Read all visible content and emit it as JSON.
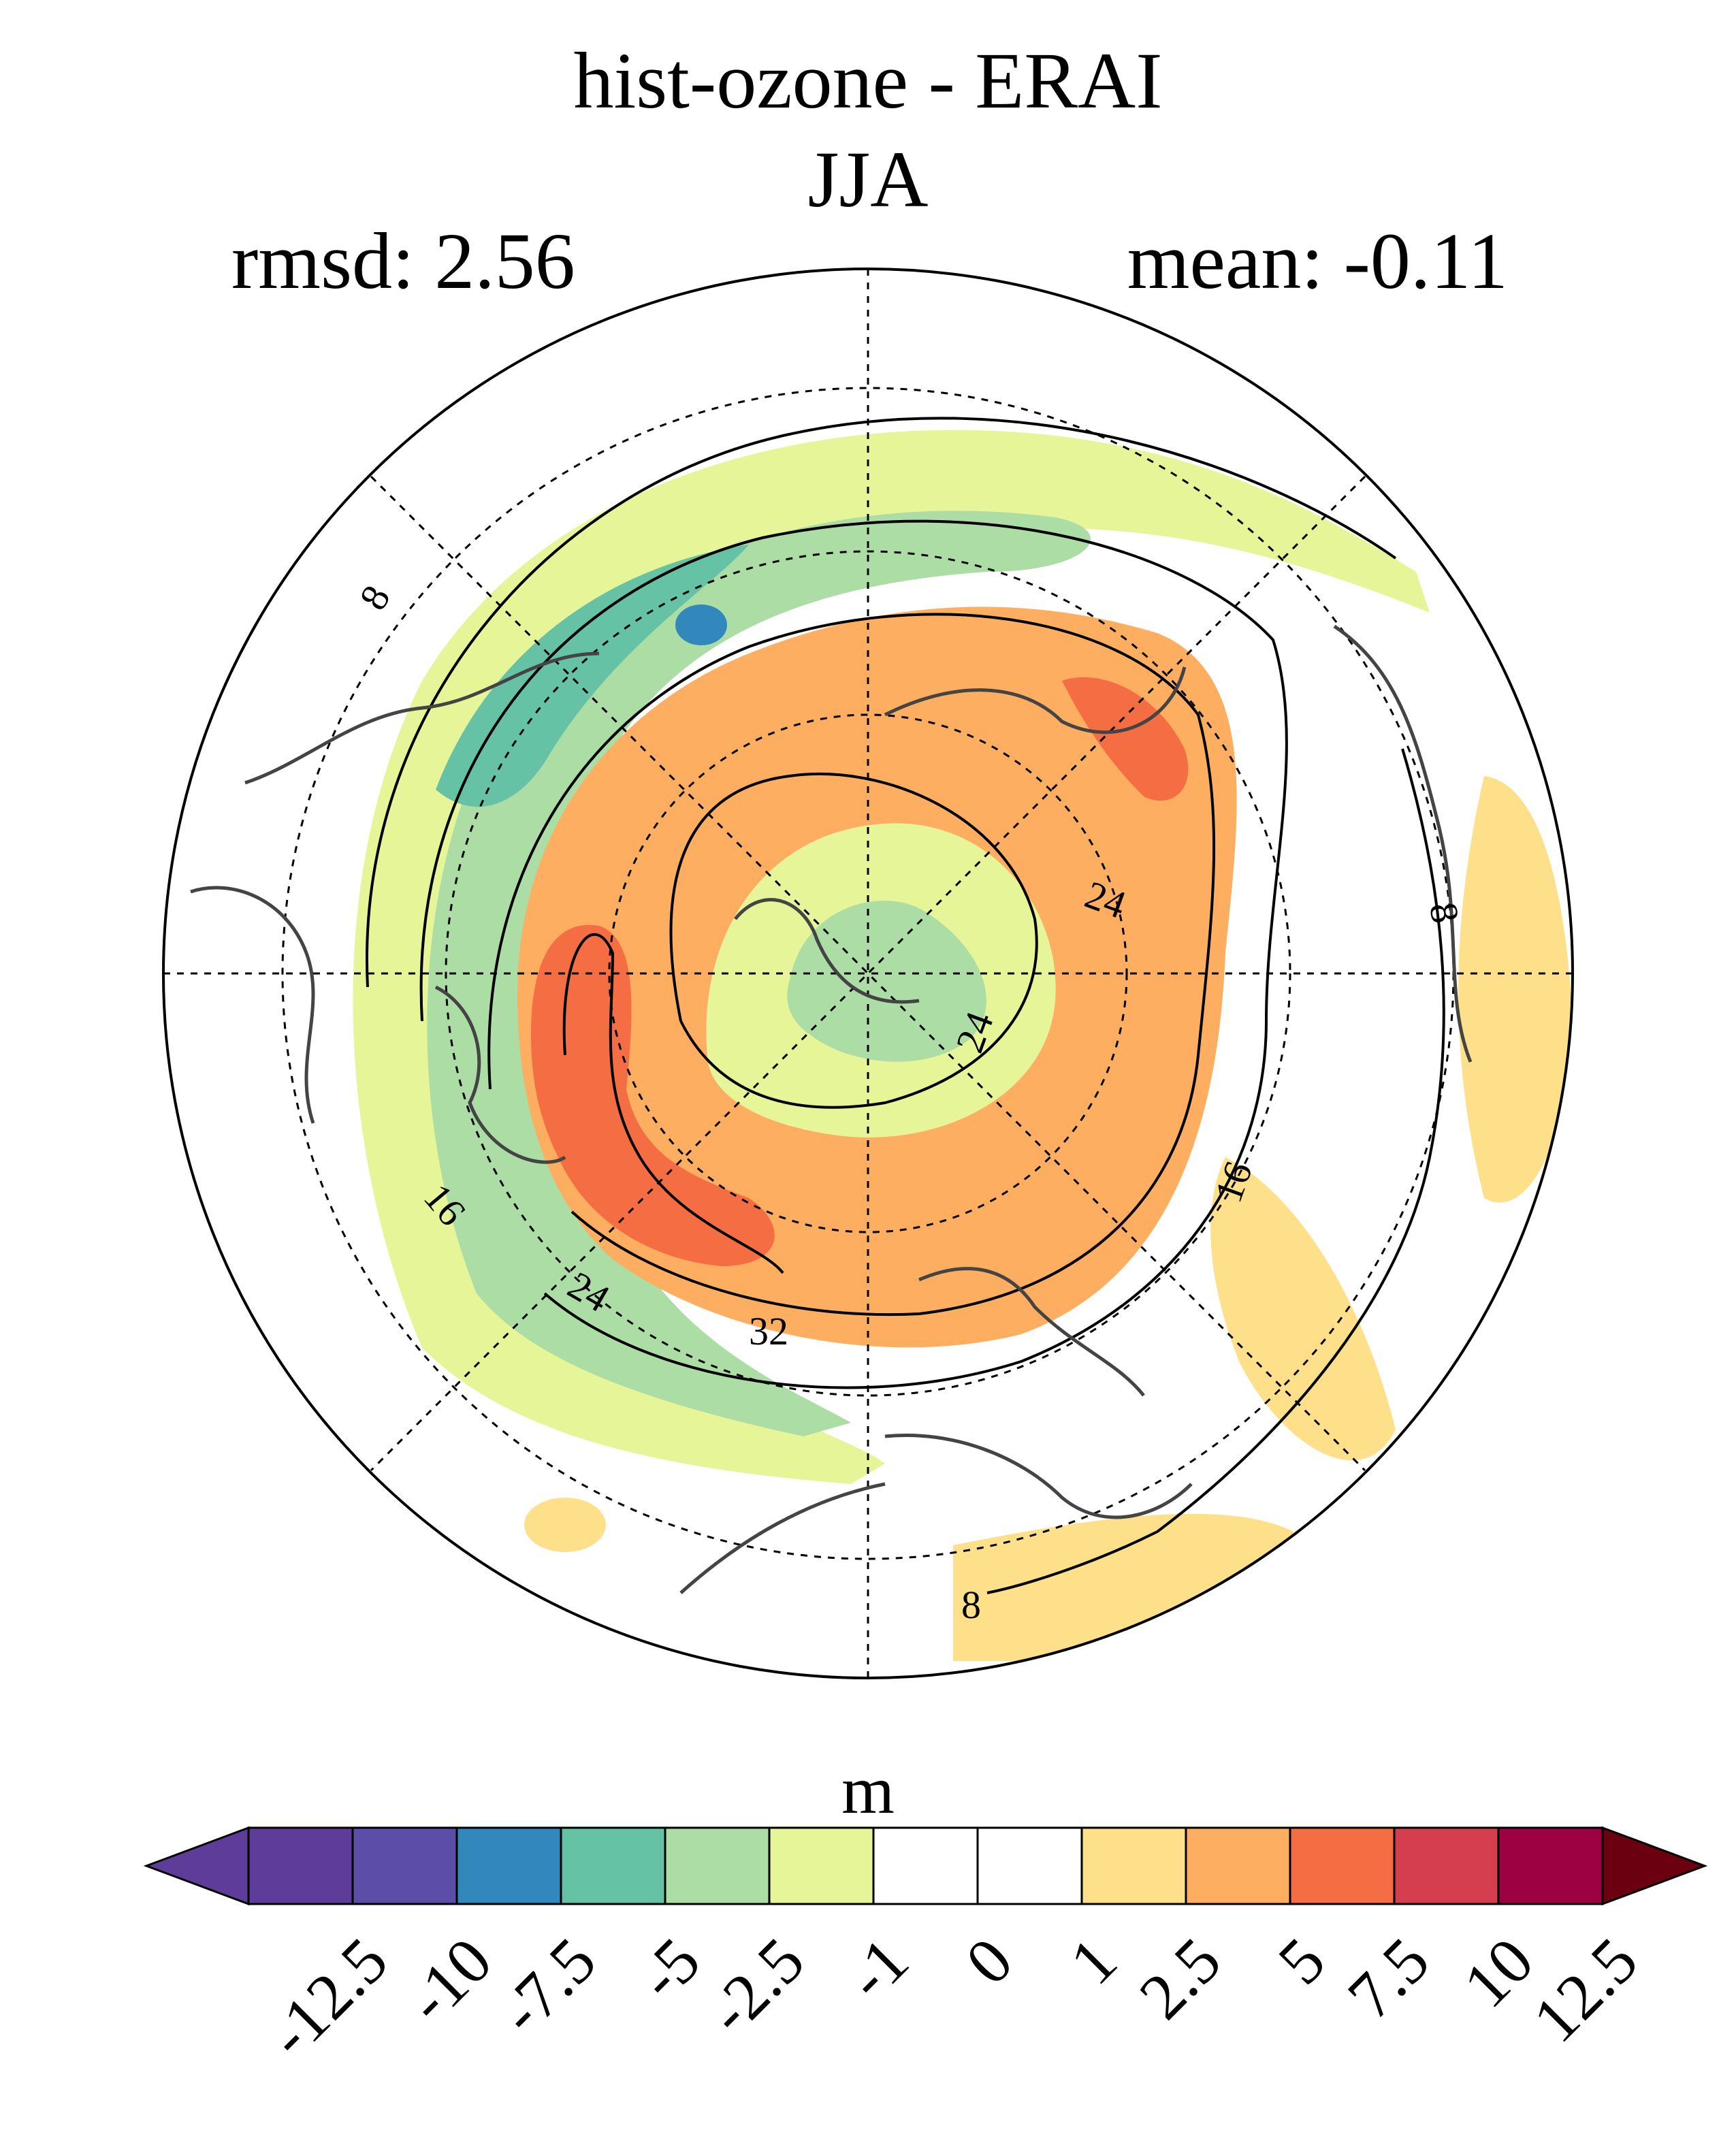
{
  "title": "hist-ozone - ERAI",
  "season": "JJA",
  "rmsd": "rmsd: 2.56",
  "mean": "mean: -0.11",
  "units": "m",
  "contour_labels": [
    "8",
    "8",
    "8",
    "16",
    "16",
    "24",
    "24",
    "24",
    "32"
  ],
  "colorbar": {
    "levels": [
      "-12.5",
      "-10",
      "-7.5",
      "-5",
      "-2.5",
      "-1",
      "0",
      "1",
      "2.5",
      "5",
      "7.5",
      "10",
      "12.5"
    ],
    "colors": [
      "#5e3c99",
      "#5c4ea8",
      "#3288bd",
      "#66c2a5",
      "#abdda4",
      "#e6f598",
      "#ffffff",
      "#ffffff",
      "#fee08b",
      "#fdae61",
      "#f46d43",
      "#d53e4f",
      "#9e0142"
    ],
    "under_color": "#5e3c99",
    "over_color": "#6b0010"
  }
}
